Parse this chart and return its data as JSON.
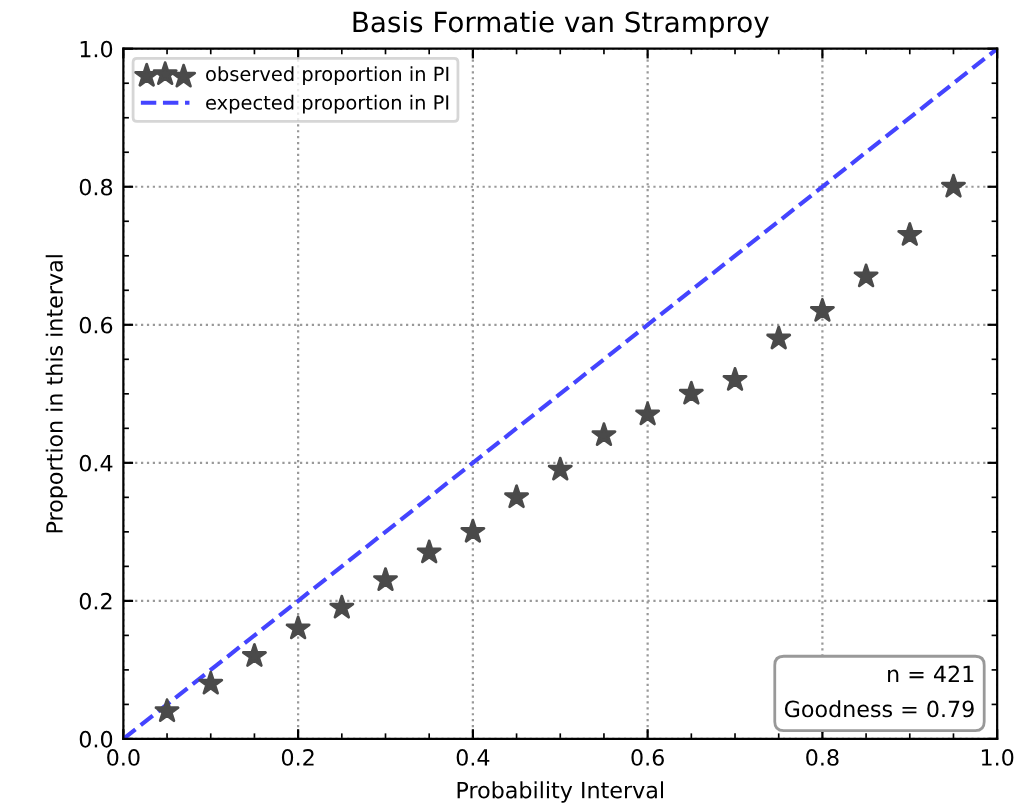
{
  "chart_data": {
    "type": "scatter",
    "title": "Basis Formatie van Stramproy",
    "xlabel": "Probability Interval",
    "ylabel": "Proportion in this interval",
    "series": [
      {
        "name": "observed proportion in PI",
        "marker": "star",
        "color": "#4a4a4a",
        "x": [
          0.05,
          0.1,
          0.15,
          0.2,
          0.25,
          0.3,
          0.35,
          0.4,
          0.45,
          0.5,
          0.55,
          0.6,
          0.65,
          0.7,
          0.75,
          0.8,
          0.85,
          0.9,
          0.95
        ],
        "values": [
          0.04,
          0.08,
          0.12,
          0.16,
          0.19,
          0.23,
          0.27,
          0.3,
          0.35,
          0.39,
          0.44,
          0.47,
          0.5,
          0.52,
          0.58,
          0.62,
          0.67,
          0.73,
          0.8
        ]
      },
      {
        "name": "expected proportion in PI",
        "type": "line",
        "line_style": "dashed",
        "color": "#4444ff",
        "x": [
          0,
          1
        ],
        "values": [
          0,
          1
        ]
      }
    ],
    "xlim": [
      0,
      1
    ],
    "ylim": [
      0,
      1
    ],
    "xticks": [
      {
        "value": 0,
        "label": "0.0"
      },
      0.2,
      0.4,
      0.6,
      0.8,
      {
        "value": 1,
        "label": "1.0"
      }
    ],
    "yticks": [
      {
        "value": 0,
        "label": "0.0"
      },
      0.2,
      0.4,
      0.6,
      0.8,
      {
        "value": 1,
        "label": "1.0"
      }
    ],
    "grid": true,
    "legend": "top left",
    "annotations": [
      "n = 421\nGoodness = 0.79"
    ]
  }
}
